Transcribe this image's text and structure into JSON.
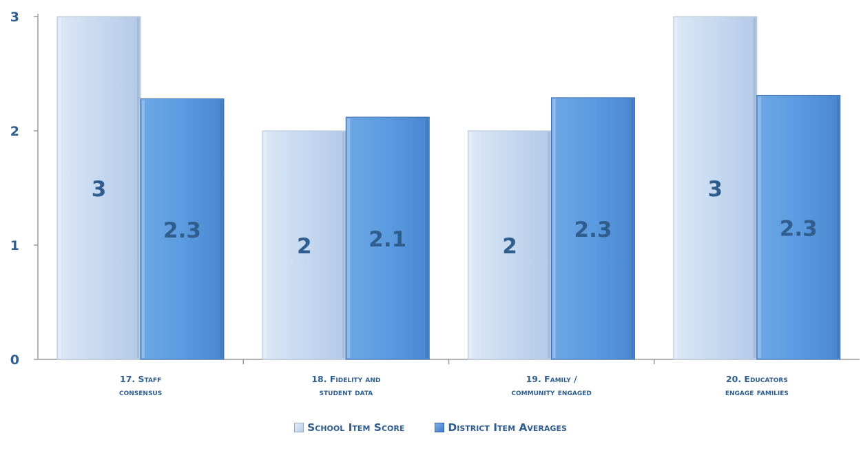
{
  "chart_data": {
    "type": "bar",
    "categories": [
      [
        "17. Staff",
        "consensus"
      ],
      [
        "18. Fidelity and",
        "student data"
      ],
      [
        "19. Family /",
        "community engaged"
      ],
      [
        "20. Educators",
        "engage families"
      ]
    ],
    "series": [
      {
        "name": "School Item Score",
        "values": [
          3,
          2,
          2,
          3
        ],
        "labels": [
          "3",
          "2",
          "2",
          "3"
        ],
        "color": "#c6d9f0"
      },
      {
        "name": "District Item Averages",
        "values": [
          2.28,
          2.12,
          2.29,
          2.31
        ],
        "labels": [
          "2.3",
          "2.1",
          "2.3",
          "2.3"
        ],
        "color": "#5b9be0"
      }
    ],
    "yticks": [
      0,
      1,
      2,
      3
    ],
    "ylim": [
      0,
      3
    ],
    "grid": false,
    "legend_position": "bottom",
    "label_color": "#2e5d8e"
  }
}
